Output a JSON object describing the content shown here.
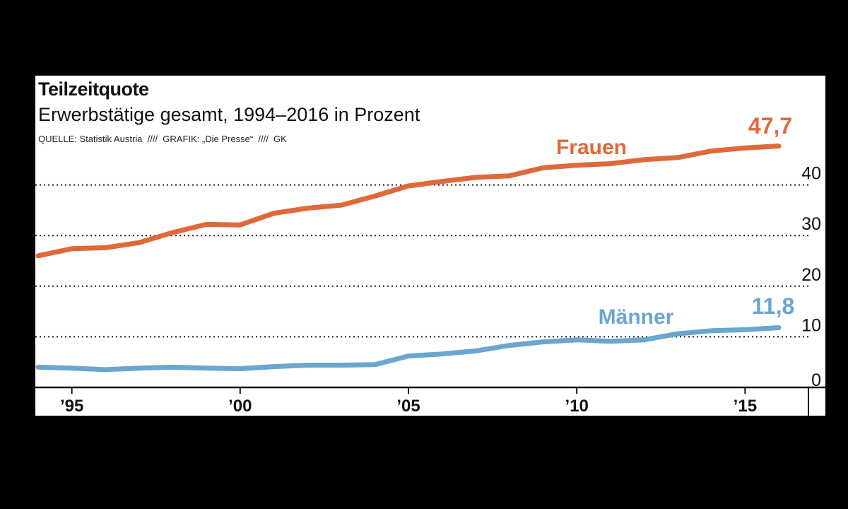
{
  "colors": {
    "frauen": "#e0693a",
    "maenner": "#6ba6cf",
    "grid": "#222222",
    "text": "#111111"
  },
  "chart_data": {
    "type": "line",
    "title": "Teilzeitquote",
    "subtitle": "Erwerbstätige gesamt, 1994–2016 in Prozent",
    "source": "QUELLE: Statistik Austria  ////  GRAFIK: „Die Presse“  ////  GK",
    "x": [
      1994,
      1995,
      1996,
      1997,
      1998,
      1999,
      2000,
      2001,
      2002,
      2003,
      2004,
      2005,
      2006,
      2007,
      2008,
      2009,
      2010,
      2011,
      2012,
      2013,
      2014,
      2015,
      2016
    ],
    "xticks": [
      {
        "value": 1995,
        "label": "’95"
      },
      {
        "value": 2000,
        "label": "’00"
      },
      {
        "value": 2005,
        "label": "’05"
      },
      {
        "value": 2010,
        "label": "’10"
      },
      {
        "value": 2015,
        "label": "’15"
      }
    ],
    "yticks": [
      0,
      10,
      20,
      30,
      40
    ],
    "ylim": [
      0,
      50
    ],
    "grid": true,
    "series": [
      {
        "name": "Frauen",
        "key": "frauen",
        "values": [
          26.0,
          27.4,
          27.6,
          28.6,
          30.6,
          32.2,
          32.1,
          34.4,
          35.4,
          36.0,
          37.8,
          39.8,
          40.7,
          41.5,
          41.8,
          43.4,
          43.9,
          44.2,
          45.0,
          45.4,
          46.7,
          47.3,
          47.7
        ],
        "end_label": "47,7"
      },
      {
        "name": "Männer",
        "key": "maenner",
        "values": [
          4.0,
          3.8,
          3.5,
          3.8,
          4.0,
          3.8,
          3.7,
          4.1,
          4.4,
          4.4,
          4.5,
          6.2,
          6.6,
          7.2,
          8.3,
          9.0,
          9.4,
          9.1,
          9.4,
          10.6,
          11.2,
          11.4,
          11.8
        ],
        "end_label": "11,8"
      }
    ]
  }
}
